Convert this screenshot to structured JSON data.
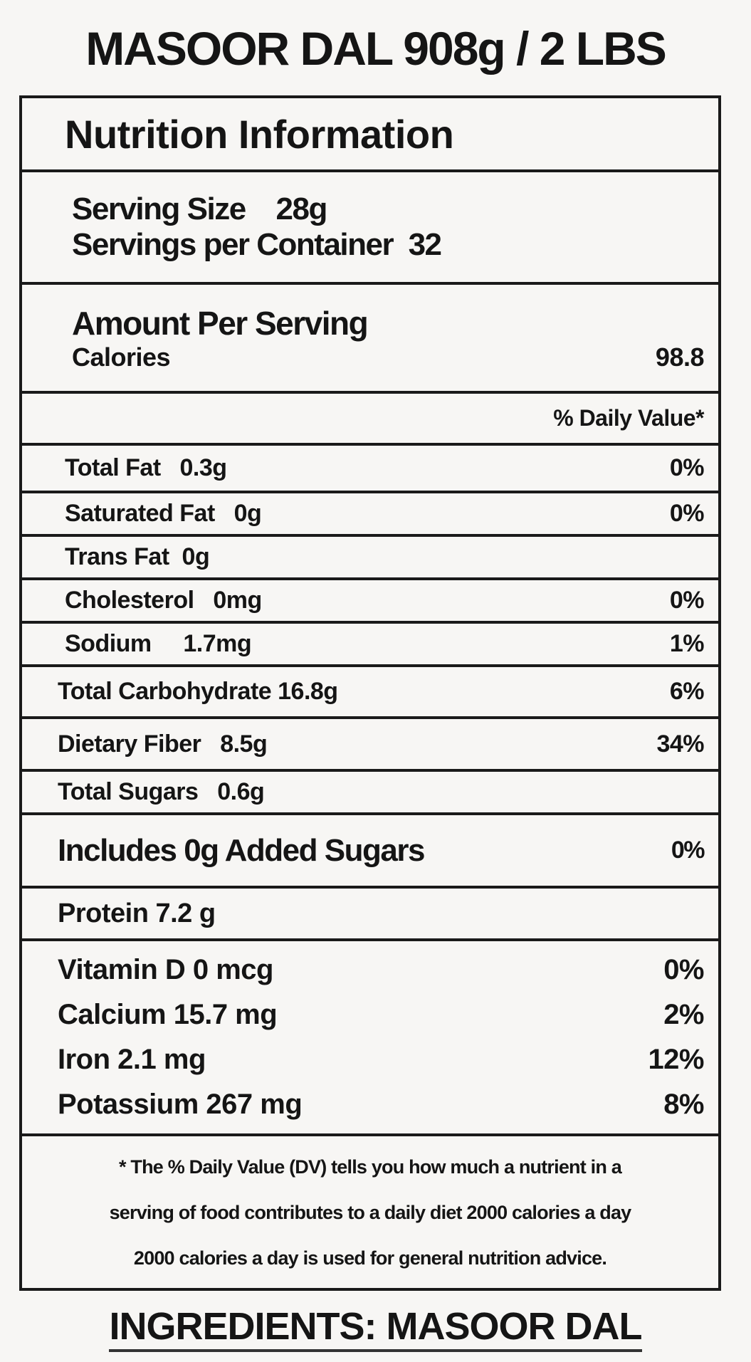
{
  "title": "MASOOR DAL 908g / 2 LBS",
  "panel_title": "Nutrition Information",
  "serving_size": "Serving Size    28g",
  "servings_per_container": "Servings per Container  32",
  "amount_per_serving": "Amount Per Serving",
  "calories_label": "Calories",
  "calories_value": "98.8",
  "daily_value_header": "% Daily Value*",
  "nutrients": [
    {
      "label": "Total Fat   0.3g",
      "dv": "0%"
    },
    {
      "label": "Saturated Fat   0g",
      "dv": "0%"
    },
    {
      "label": "Trans Fat  0g",
      "dv": ""
    },
    {
      "label": "Cholesterol   0mg",
      "dv": "0%"
    },
    {
      "label": "Sodium     1.7mg",
      "dv": "1%"
    },
    {
      "label": "Total Carbohydrate 16.8g",
      "dv": "6%"
    },
    {
      "label": "Dietary Fiber   8.5g",
      "dv": "34%"
    },
    {
      "label": "Total Sugars   0.6g",
      "dv": ""
    },
    {
      "label": "Includes 0g Added Sugars",
      "dv": "0%"
    },
    {
      "label": "Protein 7.2 g",
      "dv": ""
    }
  ],
  "vitamins": [
    {
      "label": "Vitamin D 0 mcg",
      "dv": "0%"
    },
    {
      "label": "Calcium 15.7 mg",
      "dv": "2%"
    },
    {
      "label": "Iron 2.1 mg",
      "dv": "12%"
    },
    {
      "label": "Potassium 267 mg",
      "dv": "8%"
    }
  ],
  "footnote": [
    "* The % Daily Value (DV) tells you how much a nutrient in a",
    "serving of food contributes to a daily diet 2000 calories a day",
    "2000 calories a day is used for general nutrition advice."
  ],
  "ingredients": "INGREDIENTS: MASOOR DAL"
}
